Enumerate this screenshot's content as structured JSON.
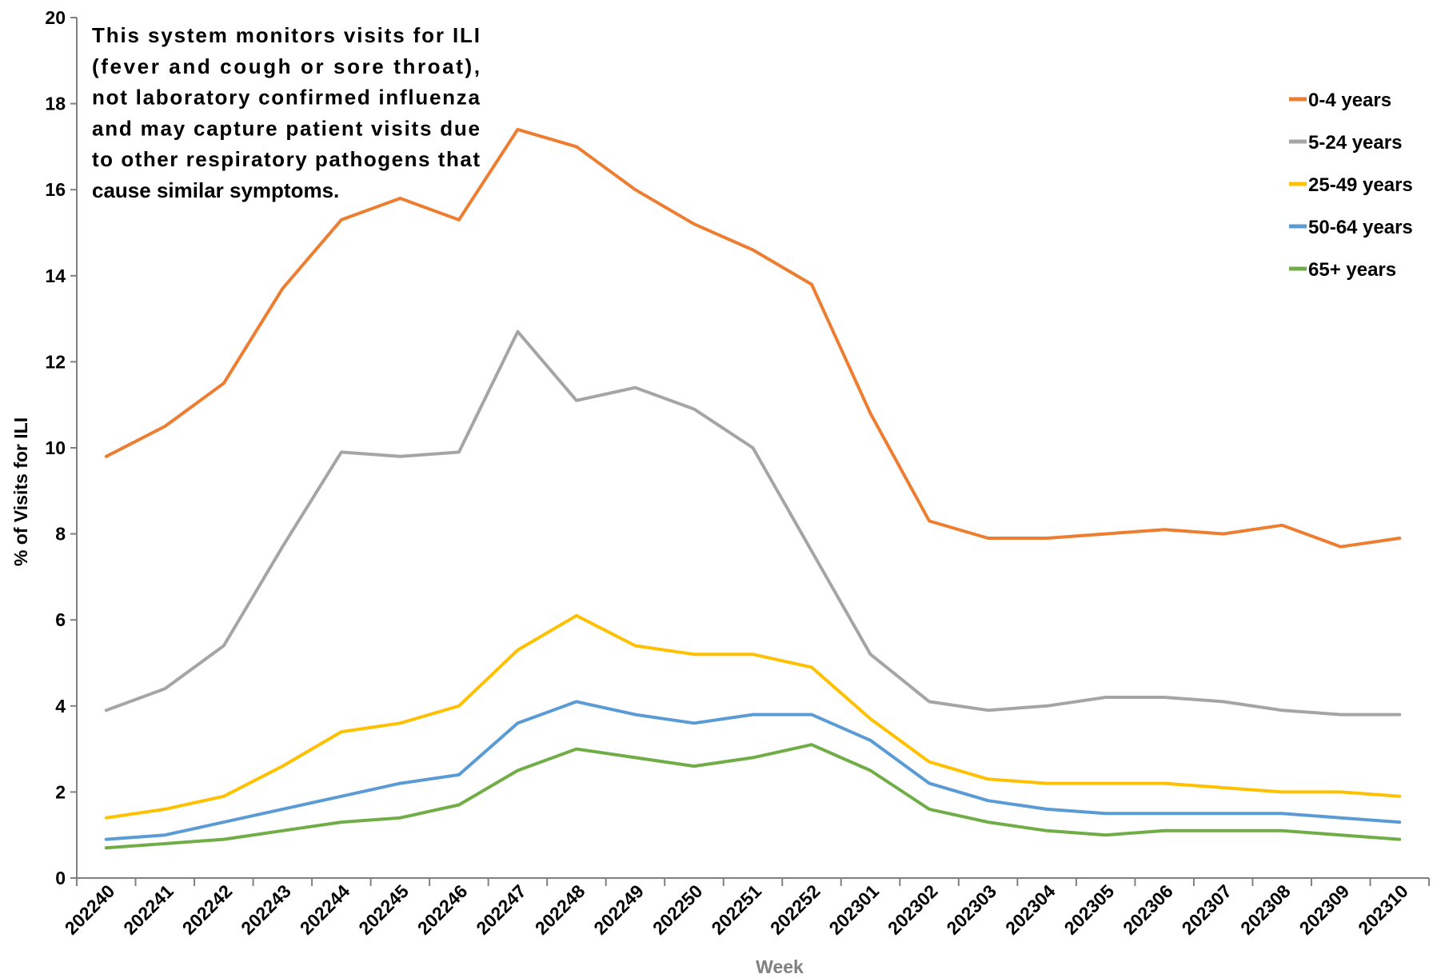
{
  "chart_data": {
    "type": "line",
    "xlabel": "Week",
    "ylabel": "% of Visits for ILI",
    "ylim": [
      0,
      20
    ],
    "yticks": [
      0,
      2,
      4,
      6,
      8,
      10,
      12,
      14,
      16,
      18,
      20
    ],
    "categories": [
      "202240",
      "202241",
      "202242",
      "202243",
      "202244",
      "202245",
      "202246",
      "202247",
      "202248",
      "202249",
      "202250",
      "202251",
      "202252",
      "202301",
      "202302",
      "202303",
      "202304",
      "202305",
      "202306",
      "202307",
      "202308",
      "202309",
      "202310"
    ],
    "grid": false,
    "legend_position": "right",
    "annotation": [
      "This system monitors visits for ILI",
      "(fever and cough or sore throat),",
      "not laboratory confirmed influenza",
      "and may capture patient visits due",
      "to other respiratory pathogens that",
      "cause similar symptoms."
    ],
    "series": [
      {
        "name": "0-4 years",
        "color": "#ED7D31",
        "values": [
          9.8,
          10.5,
          11.5,
          13.7,
          15.3,
          15.8,
          15.3,
          17.4,
          17.0,
          16.0,
          15.2,
          14.6,
          13.8,
          10.8,
          8.3,
          7.9,
          7.9,
          8.0,
          8.1,
          8.0,
          8.2,
          7.7,
          7.9
        ]
      },
      {
        "name": "5-24 years",
        "color": "#A5A5A5",
        "values": [
          3.9,
          4.4,
          5.4,
          7.7,
          9.9,
          9.8,
          9.9,
          12.7,
          11.1,
          11.4,
          10.9,
          10.0,
          7.6,
          5.2,
          4.1,
          3.9,
          4.0,
          4.2,
          4.2,
          4.1,
          3.9,
          3.8,
          3.8
        ]
      },
      {
        "name": "25-49 years",
        "color": "#FFC000",
        "values": [
          1.4,
          1.6,
          1.9,
          2.6,
          3.4,
          3.6,
          4.0,
          5.3,
          6.1,
          5.4,
          5.2,
          5.2,
          4.9,
          3.7,
          2.7,
          2.3,
          2.2,
          2.2,
          2.2,
          2.1,
          2.0,
          2.0,
          1.9
        ]
      },
      {
        "name": "50-64 years",
        "color": "#5B9BD5",
        "values": [
          0.9,
          1.0,
          1.3,
          1.6,
          1.9,
          2.2,
          2.4,
          3.6,
          4.1,
          3.8,
          3.6,
          3.8,
          3.8,
          3.2,
          2.2,
          1.8,
          1.6,
          1.5,
          1.5,
          1.5,
          1.5,
          1.4,
          1.3
        ]
      },
      {
        "name": "65+ years",
        "color": "#70AD47",
        "values": [
          0.7,
          0.8,
          0.9,
          1.1,
          1.3,
          1.4,
          1.7,
          2.5,
          3.0,
          2.8,
          2.6,
          2.8,
          3.1,
          2.5,
          1.6,
          1.3,
          1.1,
          1.0,
          1.1,
          1.1,
          1.1,
          1.0,
          0.9
        ]
      }
    ]
  },
  "colors": {
    "axis": "#808080",
    "xlabel": "#808080",
    "text": "#000000"
  }
}
